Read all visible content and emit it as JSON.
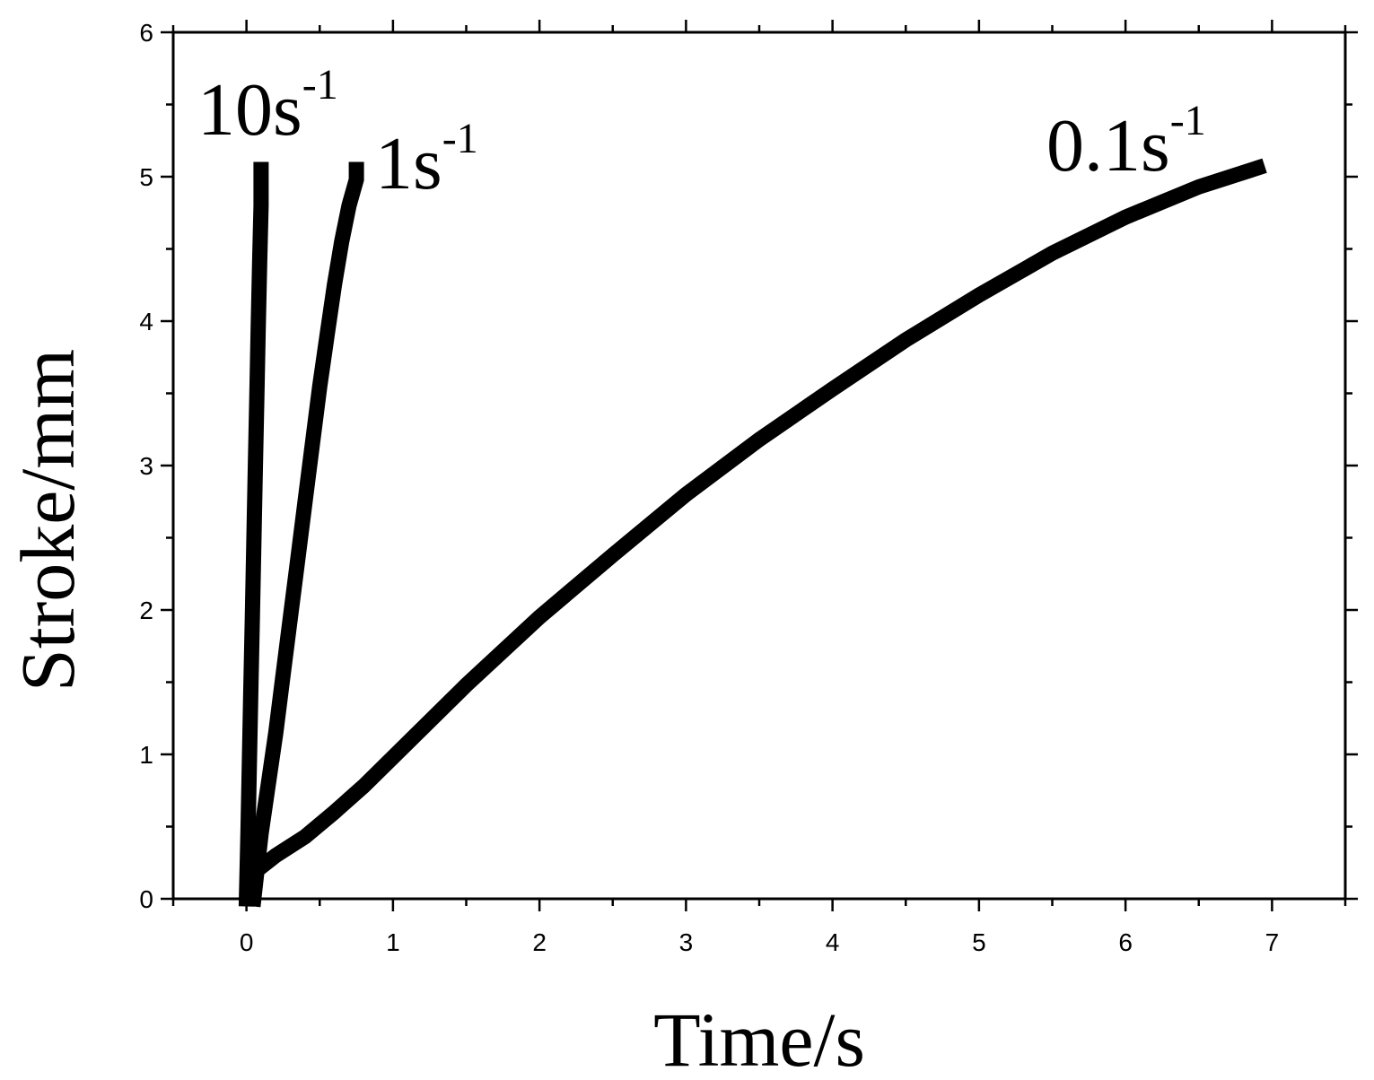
{
  "chart_data": {
    "type": "line",
    "xlabel": "Time/s",
    "ylabel": "Stroke/mm",
    "xlim": [
      -0.5,
      7.5
    ],
    "ylim": [
      0,
      6
    ],
    "xticks": [
      0,
      1,
      2,
      3,
      4,
      5,
      6,
      7
    ],
    "yticks": [
      0,
      1,
      2,
      3,
      4,
      5,
      6
    ],
    "grid": false,
    "legend": "none",
    "line_color": "#000000",
    "series": [
      {
        "label_main": "10s",
        "label_sup": "-1",
        "x": [
          0.0,
          0.01,
          0.02,
          0.03,
          0.04,
          0.05,
          0.06,
          0.07,
          0.08,
          0.09,
          0.1,
          0.1,
          0.1
        ],
        "y": [
          0.0,
          0.45,
          0.95,
          1.45,
          1.95,
          2.45,
          2.95,
          3.45,
          3.95,
          4.4,
          4.8,
          5.0,
          5.05
        ]
      },
      {
        "label_main": "1s",
        "label_sup": "-1",
        "x": [
          0.05,
          0.1,
          0.15,
          0.2,
          0.25,
          0.3,
          0.35,
          0.4,
          0.45,
          0.5,
          0.55,
          0.6,
          0.65,
          0.7,
          0.75,
          0.75
        ],
        "y": [
          0.0,
          0.45,
          0.8,
          1.15,
          1.55,
          1.95,
          2.35,
          2.75,
          3.15,
          3.55,
          3.9,
          4.25,
          4.55,
          4.8,
          4.98,
          5.05
        ]
      },
      {
        "label_main": "0.1s",
        "label_sup": "-1",
        "x": [
          0.1,
          0.2,
          0.4,
          0.6,
          0.8,
          1.0,
          1.5,
          2.0,
          2.5,
          3.0,
          3.5,
          4.0,
          4.5,
          5.0,
          5.5,
          6.0,
          6.5,
          6.9
        ],
        "y": [
          0.22,
          0.3,
          0.43,
          0.6,
          0.78,
          0.98,
          1.48,
          1.95,
          2.38,
          2.8,
          3.18,
          3.53,
          3.87,
          4.18,
          4.47,
          4.72,
          4.93,
          5.06
        ]
      }
    ]
  }
}
